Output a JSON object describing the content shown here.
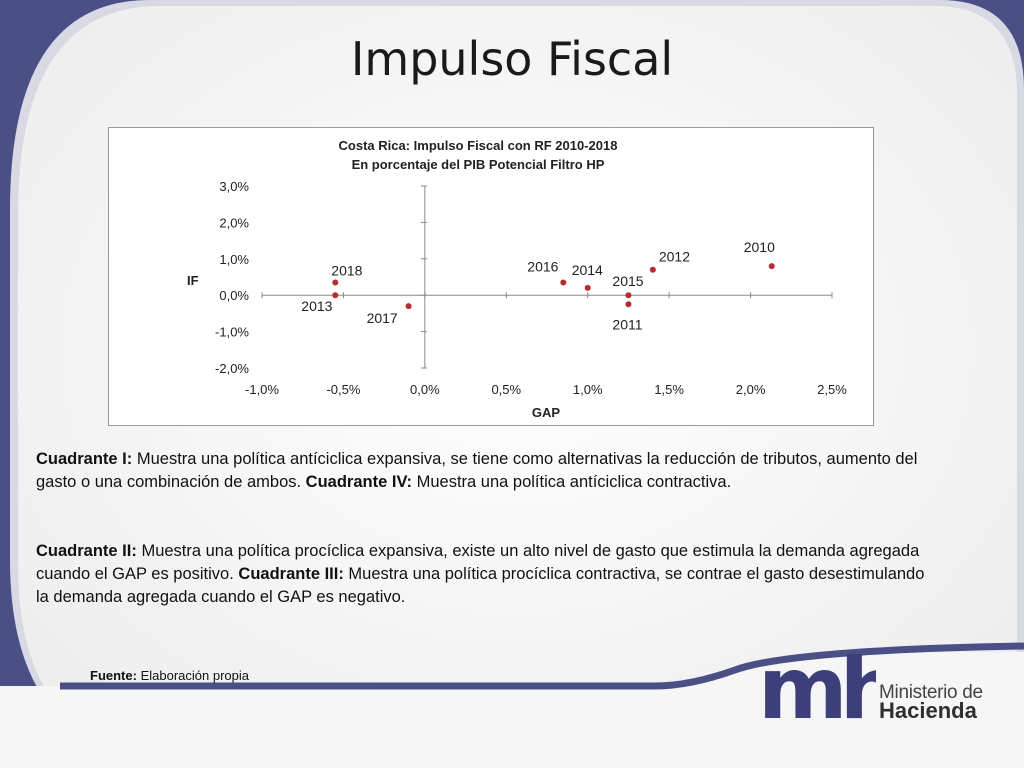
{
  "slide": {
    "title": "Impulso Fiscal",
    "accent_color": "#4a4f86",
    "paragraph1": {
      "q1_label": "Cuadrante I:",
      "q1_text": " Muestra una política antíciclica expansiva, se tiene como alternativas la reducción de tributos, aumento del gasto o una combinación de ambos. ",
      "q4_label": "Cuadrante IV:",
      "q4_text": " Muestra una política antíciclica contractiva."
    },
    "paragraph2": {
      "q2_label": "Cuadrante II:",
      "q2_text": " Muestra una política procíclica expansiva, existe un alto nivel de gasto que estimula la demanda agregada cuando el GAP es positivo. ",
      "q3_label": "Cuadrante III:",
      "q3_text": " Muestra una política procíclica contractiva, se contrae el gasto desestimulando la demanda agregada cuando el GAP es negativo."
    },
    "source_label": "Fuente:",
    "source_text": " Elaboración propia",
    "logo": {
      "mark": "mh",
      "line1": "Ministerio de",
      "line2": "Hacienda"
    }
  },
  "chart_data": {
    "type": "scatter",
    "title": "Costa Rica: Impulso Fiscal con RF 2010-2018",
    "subtitle": "En porcentaje del PIB Potencial Filtro HP",
    "xlabel": "GAP",
    "ylabel": "IF",
    "xlim": [
      -1.0,
      2.5
    ],
    "ylim": [
      -2.0,
      3.0
    ],
    "xticks": [
      "-1,0%",
      "-0,5%",
      "0,0%",
      "0,5%",
      "1,0%",
      "1,5%",
      "2,0%",
      "2,5%"
    ],
    "yticks": [
      "3,0%",
      "2,0%",
      "1,0%",
      "0,0%",
      "-1,0%",
      "-2,0%"
    ],
    "grid": false,
    "legend": "none",
    "marker_color": "#c0282f",
    "points": [
      {
        "label": "2010",
        "x": 2.13,
        "y": 0.8
      },
      {
        "label": "2011",
        "x": 1.25,
        "y": -0.25
      },
      {
        "label": "2012",
        "x": 1.4,
        "y": 0.7
      },
      {
        "label": "2013",
        "x": -0.55,
        "y": 0.0
      },
      {
        "label": "2014",
        "x": 1.0,
        "y": 0.2
      },
      {
        "label": "2015",
        "x": 1.25,
        "y": 0.0
      },
      {
        "label": "2016",
        "x": 0.85,
        "y": 0.35
      },
      {
        "label": "2017",
        "x": -0.1,
        "y": -0.3
      },
      {
        "label": "2018",
        "x": -0.55,
        "y": 0.35
      }
    ]
  }
}
